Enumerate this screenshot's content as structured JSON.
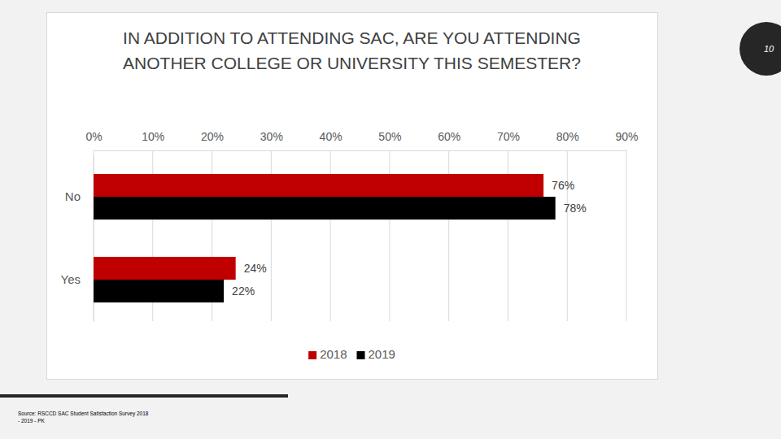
{
  "chart_data": {
    "type": "bar",
    "orientation": "horizontal",
    "title": "IN ADDITION TO ATTENDING SAC, ARE YOU ATTENDING ANOTHER COLLEGE OR UNIVERSITY THIS SEMESTER?",
    "categories": [
      "No",
      "Yes"
    ],
    "series": [
      {
        "name": "2018",
        "color": "#c00000",
        "values": [
          76,
          24
        ],
        "value_labels": [
          "76%",
          "24%"
        ]
      },
      {
        "name": "2019",
        "color": "#000000",
        "values": [
          78,
          22
        ],
        "value_labels": [
          "78%",
          "22%"
        ]
      }
    ],
    "xlim": [
      0,
      90
    ],
    "xticks": [
      {
        "value": 0,
        "label": "0%"
      },
      {
        "value": 10,
        "label": "10%"
      },
      {
        "value": 20,
        "label": "20%"
      },
      {
        "value": 30,
        "label": "30%"
      },
      {
        "value": 40,
        "label": "40%"
      },
      {
        "value": 50,
        "label": "50%"
      },
      {
        "value": 60,
        "label": "60%"
      },
      {
        "value": 70,
        "label": "70%"
      },
      {
        "value": 80,
        "label": "80%"
      },
      {
        "value": 90,
        "label": "90%"
      }
    ],
    "grid": true,
    "data_labels": true,
    "legend": "bottom"
  },
  "slide": {
    "number": "10",
    "source": [
      "Source: RSCCD SAC Student Satisfaction Survey 2018",
      "- 2019 - PK"
    ]
  }
}
